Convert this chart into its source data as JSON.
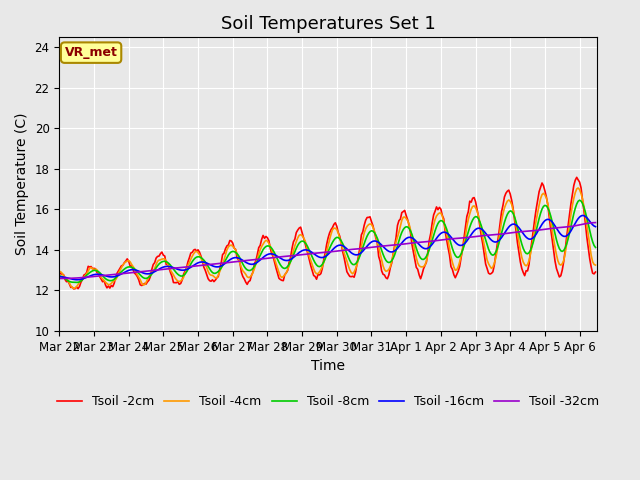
{
  "title": "Soil Temperatures Set 1",
  "xlabel": "Time",
  "ylabel": "Soil Temperature (C)",
  "annotation_text": "VR_met",
  "ylim": [
    10,
    24.5
  ],
  "xlim": [
    0,
    15.5
  ],
  "tick_labels": [
    "Mar 22",
    "Mar 23",
    "Mar 24",
    "Mar 25",
    "Mar 26",
    "Mar 27",
    "Mar 28",
    "Mar 29",
    "Mar 30",
    "Mar 31",
    "Apr 1",
    "Apr 2",
    "Apr 3",
    "Apr 4",
    "Apr 5",
    "Apr 6"
  ],
  "legend_entries": [
    "Tsoil -2cm",
    "Tsoil -4cm",
    "Tsoil -8cm",
    "Tsoil -16cm",
    "Tsoil -32cm"
  ],
  "line_colors": [
    "#ff0000",
    "#ff9900",
    "#00cc00",
    "#0000ff",
    "#9900cc"
  ],
  "background_color": "#e8e8e8",
  "title_fontsize": 13,
  "label_fontsize": 10,
  "tick_fontsize": 8.5,
  "legend_fontsize": 9
}
